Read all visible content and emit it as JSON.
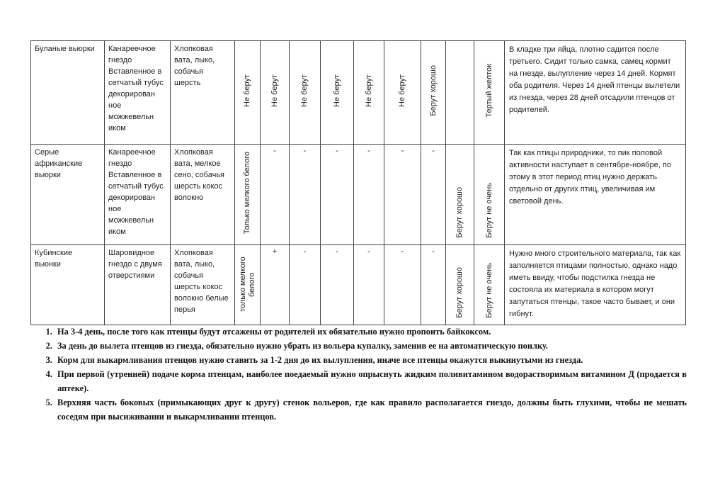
{
  "table": {
    "rows": [
      {
        "bird": "Буланые вьюрки",
        "nest": "Канареечное гнездо Вставленное в сетчатый тубус декорирован ное можжевельн иком",
        "material": "Хлопковая вата, лыко, собачья шерсть",
        "feeds": [
          "Не берут",
          "Не берут",
          "Не берут",
          "Не берут",
          "Не берут",
          "Не берут",
          "Берут хорошо",
          "",
          "Тертый желток"
        ],
        "note": "В кладке три яйца, плотно садится после третьего. Сидит только самка, самец кормит на гнезде, вылупление через 14 дней. Кормят оба родителя. Через 14 дней птенцы вылетели из гнезда, через  28 дней отсадили птенцов от родителей."
      },
      {
        "bird": "Серые африканские вьюрки",
        "nest": "Канареечное гнездо Вставленное в сетчатый тубус декорирован ное можжевельн иком",
        "material": "Хлопковая вата, мелкое сено, собачья шерсть кокос волокно",
        "feeds": [
          "Только мелкого белого",
          "-",
          "-",
          "-",
          "-",
          "-",
          "-",
          "Берут хорошо",
          "Берут не очень"
        ],
        "note": "Так как птицы природники, то пик половой активности наступает в сентябре-ноябре, по этому в этот период птиц нужно держать отдельно от других птиц, увеличивая им световой день."
      },
      {
        "bird": "Кубинские вьюнки",
        "nest": "Шаровидное гнездо с двумя отверстиями",
        "material": "Хлопковая вата, лыко, собачья шерсть кокос волокно белые перья",
        "feeds": [
          "только мелкого белого",
          "+",
          "-",
          "-",
          "-",
          "-",
          "-",
          "Берут хорошо",
          "Берут не очень"
        ],
        "note": "Нужно много строительного материала, так как заполняется птицами полностью, однако надо иметь ввиду, чтобы подстилка гнезда не состояла их материала в котором могут запутаться птенцы, такое часто бывает, и они гибнут."
      }
    ]
  },
  "notes": [
    "На 3-4 день, после того как птенцы будут отсажены от родителей их обязательно нужно пропоить байкоксом.",
    "За день до вылета птенцов из гнезда, обязательно нужно убрать из вольера купалку, заменив ее на автоматическую поилку.",
    "Корм для выкармливания птенцов нужно ставить за 1-2 дня до их вылупления, иначе  все птенцы окажутся выкинутыми из гнезда.",
    "При первой (утренней) подаче корма птенцам, наиболее поедаемый нужно опрыснуть жидким поливитамином  водорастворимым витамином Д (продается в аптеке).",
    "Верхняя часть боковых (примыкающих друг к другу) стенок вольеров, где как правило располагается гнездо, должны быть глухими, чтобы не мешать соседям при высиживании и выкармливании птенцов."
  ]
}
